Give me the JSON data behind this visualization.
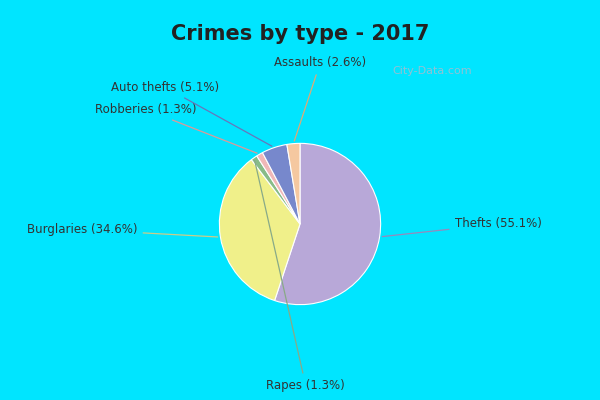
{
  "title": "Crimes by type - 2017",
  "title_fontsize": 15,
  "title_fontweight": "bold",
  "slices": [
    {
      "label": "Thefts (55.1%)",
      "value": 55.1,
      "color": "#b8a8d8"
    },
    {
      "label": "Burglaries (34.6%)",
      "value": 34.6,
      "color": "#f0f08a"
    },
    {
      "label": "Rapes (1.3%)",
      "value": 1.3,
      "color": "#88bb88"
    },
    {
      "label": "Robberies (1.3%)",
      "value": 1.3,
      "color": "#f0b8b8"
    },
    {
      "label": "Auto thefts (5.1%)",
      "value": 5.1,
      "color": "#7788cc"
    },
    {
      "label": "Assaults (2.6%)",
      "value": 2.6,
      "color": "#f5c8a0"
    }
  ],
  "cyan_border": "#00e5ff",
  "inner_bg": "#d0e8d8",
  "label_fontsize": 8.5,
  "startangle": 90,
  "figsize": [
    6.0,
    4.0
  ],
  "dpi": 100,
  "title_color": "#222222",
  "title_bg": "#00e5ff",
  "watermark": "City-Data.com",
  "watermark_color": "#aabbcc"
}
